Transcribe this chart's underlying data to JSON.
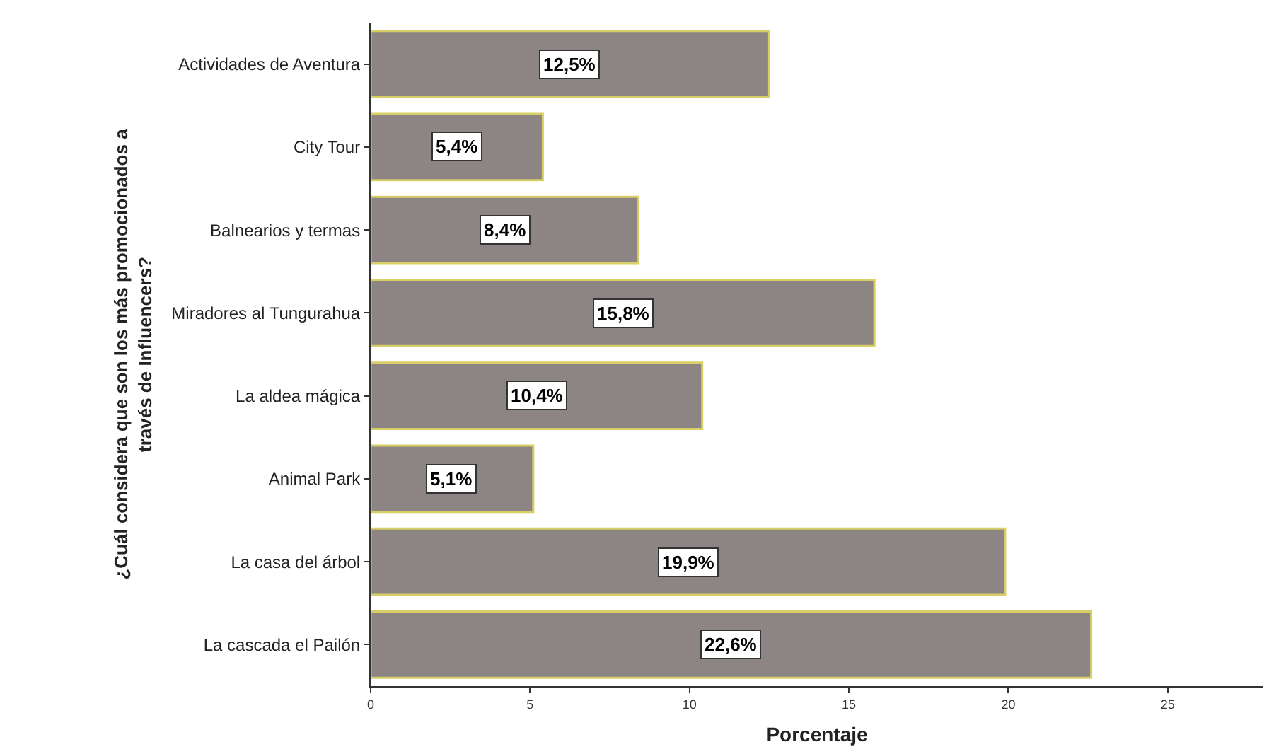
{
  "chart_data": {
    "type": "bar",
    "orientation": "horizontal",
    "xlabel": "Porcentaje",
    "ylabel": "¿Cuál considera que son los más promocionados a través de Influencers?",
    "categories": [
      "Actividades de Aventura",
      "City Tour",
      "Balnearios y termas",
      "Miradores al Tungurahua",
      "La aldea mágica",
      "Animal Park",
      "La casa del árbol",
      "La cascada el Pailón"
    ],
    "values": [
      12.5,
      5.4,
      8.4,
      15.8,
      10.4,
      5.1,
      19.9,
      22.6
    ],
    "value_labels": [
      "12,5%",
      "5,4%",
      "8,4%",
      "15,8%",
      "10,4%",
      "5,1%",
      "19,9%",
      "22,6%"
    ],
    "color": "#8c8584",
    "xlim": [
      0,
      28
    ],
    "xticks": [
      0,
      5,
      10,
      15,
      20,
      25
    ],
    "grid": false
  }
}
